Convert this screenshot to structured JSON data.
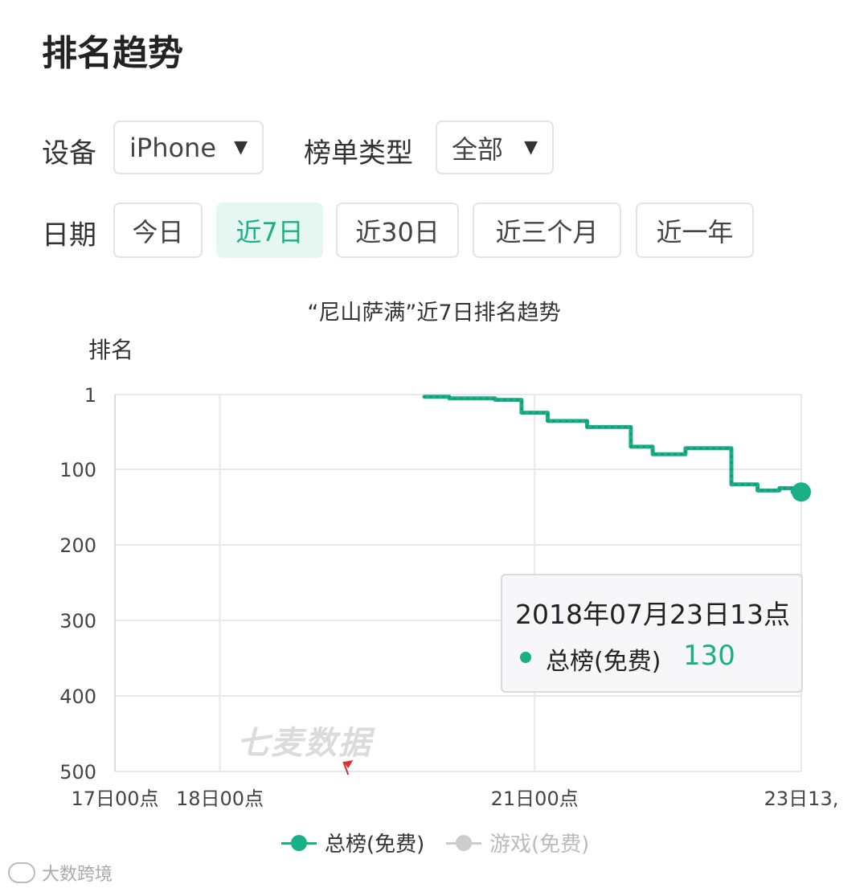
{
  "page": {
    "title": "排名趋势"
  },
  "filters": {
    "device_label": "设备",
    "device_value": "iPhone",
    "list_type_label": "榜单类型",
    "list_type_value": "全部",
    "date_label": "日期",
    "date_options": [
      "今日",
      "近7日",
      "近30日",
      "近三个月",
      "近一年"
    ],
    "date_selected": "近7日",
    "dropdown_glyph": "▼"
  },
  "tooltip": {
    "title": "2018年07月23日13点",
    "series_name": "总榜(免费)",
    "value": "130"
  },
  "watermark": "七麦数据",
  "corner_brand": "大数跨境",
  "colors": {
    "accent": "#19b087",
    "inactive": "#cccccc",
    "grid": "#e8e8e8"
  },
  "chart_data": {
    "type": "line",
    "title": "“尼山萨满”近7日排名趋势",
    "ylabel": "排名",
    "xlabel": "",
    "y_inverted": true,
    "ylim": [
      1,
      500
    ],
    "yticks": [
      1,
      100,
      200,
      300,
      400,
      500
    ],
    "xlim": [
      "17日00点",
      "23日13点"
    ],
    "xticks": [
      {
        "hours": 0,
        "label": "17日00点"
      },
      {
        "hours": 24,
        "label": "18日00点"
      },
      {
        "hours": 96,
        "label": "21日00点"
      },
      {
        "hours": 157,
        "label": "23日13,"
      }
    ],
    "grid": true,
    "legend_position": "bottom",
    "flag_marker_hours": 53,
    "series": [
      {
        "name": "总榜(免费)",
        "color": "#19b087",
        "active": true,
        "points": [
          [
            70.5,
            4
          ],
          [
            76.5,
            4
          ],
          [
            76.5,
            6
          ],
          [
            87,
            6
          ],
          [
            87,
            8
          ],
          [
            93,
            8
          ],
          [
            93,
            25
          ],
          [
            99,
            25
          ],
          [
            99,
            36
          ],
          [
            108,
            36
          ],
          [
            108,
            44
          ],
          [
            118,
            44
          ],
          [
            118,
            70
          ],
          [
            123,
            70
          ],
          [
            123,
            80
          ],
          [
            130.5,
            80
          ],
          [
            130.5,
            72
          ],
          [
            141,
            72
          ],
          [
            141,
            120
          ],
          [
            147,
            120
          ],
          [
            147,
            128
          ],
          [
            152,
            128
          ],
          [
            152,
            125
          ],
          [
            155,
            125
          ],
          [
            155,
            130
          ],
          [
            157,
            130
          ]
        ]
      },
      {
        "name": "游戏(免费)",
        "color": "#cccccc",
        "active": false,
        "points": []
      }
    ]
  }
}
